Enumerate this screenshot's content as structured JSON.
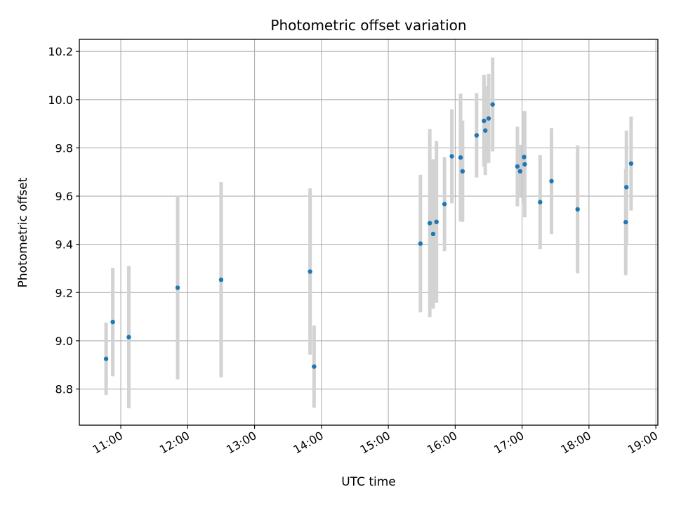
{
  "chart_data": {
    "type": "scatter",
    "title": "Photometric offset variation",
    "xlabel": "UTC time",
    "ylabel": "Photometric offset",
    "x_unit": "UTC time (hours)",
    "xlim": [
      10.38,
      19.03
    ],
    "ylim": [
      8.65,
      10.25
    ],
    "grid": true,
    "marker_color": "#1f77b4",
    "errorbar_color": "#d3d3d3",
    "x_ticks": [
      {
        "value": 11,
        "label": "11:00"
      },
      {
        "value": 12,
        "label": "12:00"
      },
      {
        "value": 13,
        "label": "13:00"
      },
      {
        "value": 14,
        "label": "14:00"
      },
      {
        "value": 15,
        "label": "15:00"
      },
      {
        "value": 16,
        "label": "16:00"
      },
      {
        "value": 17,
        "label": "17:00"
      },
      {
        "value": 18,
        "label": "18:00"
      },
      {
        "value": 19,
        "label": "19:00"
      }
    ],
    "y_ticks": [
      {
        "value": 8.8,
        "label": "8.8"
      },
      {
        "value": 9.0,
        "label": "9.0"
      },
      {
        "value": 9.2,
        "label": "9.2"
      },
      {
        "value": 9.4,
        "label": "9.4"
      },
      {
        "value": 9.6,
        "label": "9.6"
      },
      {
        "value": 9.8,
        "label": "9.8"
      },
      {
        "value": 10.0,
        "label": "10.0"
      },
      {
        "value": 10.2,
        "label": "10.2"
      }
    ],
    "points": [
      {
        "x": 10.78,
        "y": 8.925,
        "err": 0.15
      },
      {
        "x": 10.88,
        "y": 9.078,
        "err": 0.225
      },
      {
        "x": 11.12,
        "y": 9.015,
        "err": 0.295
      },
      {
        "x": 11.85,
        "y": 9.22,
        "err": 0.38
      },
      {
        "x": 12.5,
        "y": 9.253,
        "err": 0.405
      },
      {
        "x": 13.83,
        "y": 9.287,
        "err": 0.345
      },
      {
        "x": 13.89,
        "y": 8.893,
        "err": 0.17
      },
      {
        "x": 15.48,
        "y": 9.403,
        "err": 0.285
      },
      {
        "x": 15.62,
        "y": 9.488,
        "err": 0.39
      },
      {
        "x": 15.67,
        "y": 9.443,
        "err": 0.31
      },
      {
        "x": 15.72,
        "y": 9.493,
        "err": 0.335
      },
      {
        "x": 15.84,
        "y": 9.567,
        "err": 0.195
      },
      {
        "x": 15.95,
        "y": 9.765,
        "err": 0.195
      },
      {
        "x": 16.08,
        "y": 9.76,
        "err": 0.265
      },
      {
        "x": 16.11,
        "y": 9.703,
        "err": 0.21
      },
      {
        "x": 16.32,
        "y": 9.852,
        "err": 0.175
      },
      {
        "x": 16.43,
        "y": 9.912,
        "err": 0.19
      },
      {
        "x": 16.45,
        "y": 9.872,
        "err": 0.185
      },
      {
        "x": 16.5,
        "y": 9.922,
        "err": 0.185
      },
      {
        "x": 16.56,
        "y": 9.98,
        "err": 0.195
      },
      {
        "x": 16.93,
        "y": 9.723,
        "err": 0.165
      },
      {
        "x": 16.97,
        "y": 9.703,
        "err": 0.11
      },
      {
        "x": 17.03,
        "y": 9.762,
        "err": 0.19
      },
      {
        "x": 17.04,
        "y": 9.732,
        "err": 0.22
      },
      {
        "x": 17.27,
        "y": 9.575,
        "err": 0.195
      },
      {
        "x": 17.44,
        "y": 9.662,
        "err": 0.22
      },
      {
        "x": 17.83,
        "y": 9.545,
        "err": 0.265
      },
      {
        "x": 18.55,
        "y": 9.492,
        "err": 0.22
      },
      {
        "x": 18.56,
        "y": 9.637,
        "err": 0.235
      },
      {
        "x": 18.63,
        "y": 9.735,
        "err": 0.195
      }
    ]
  }
}
